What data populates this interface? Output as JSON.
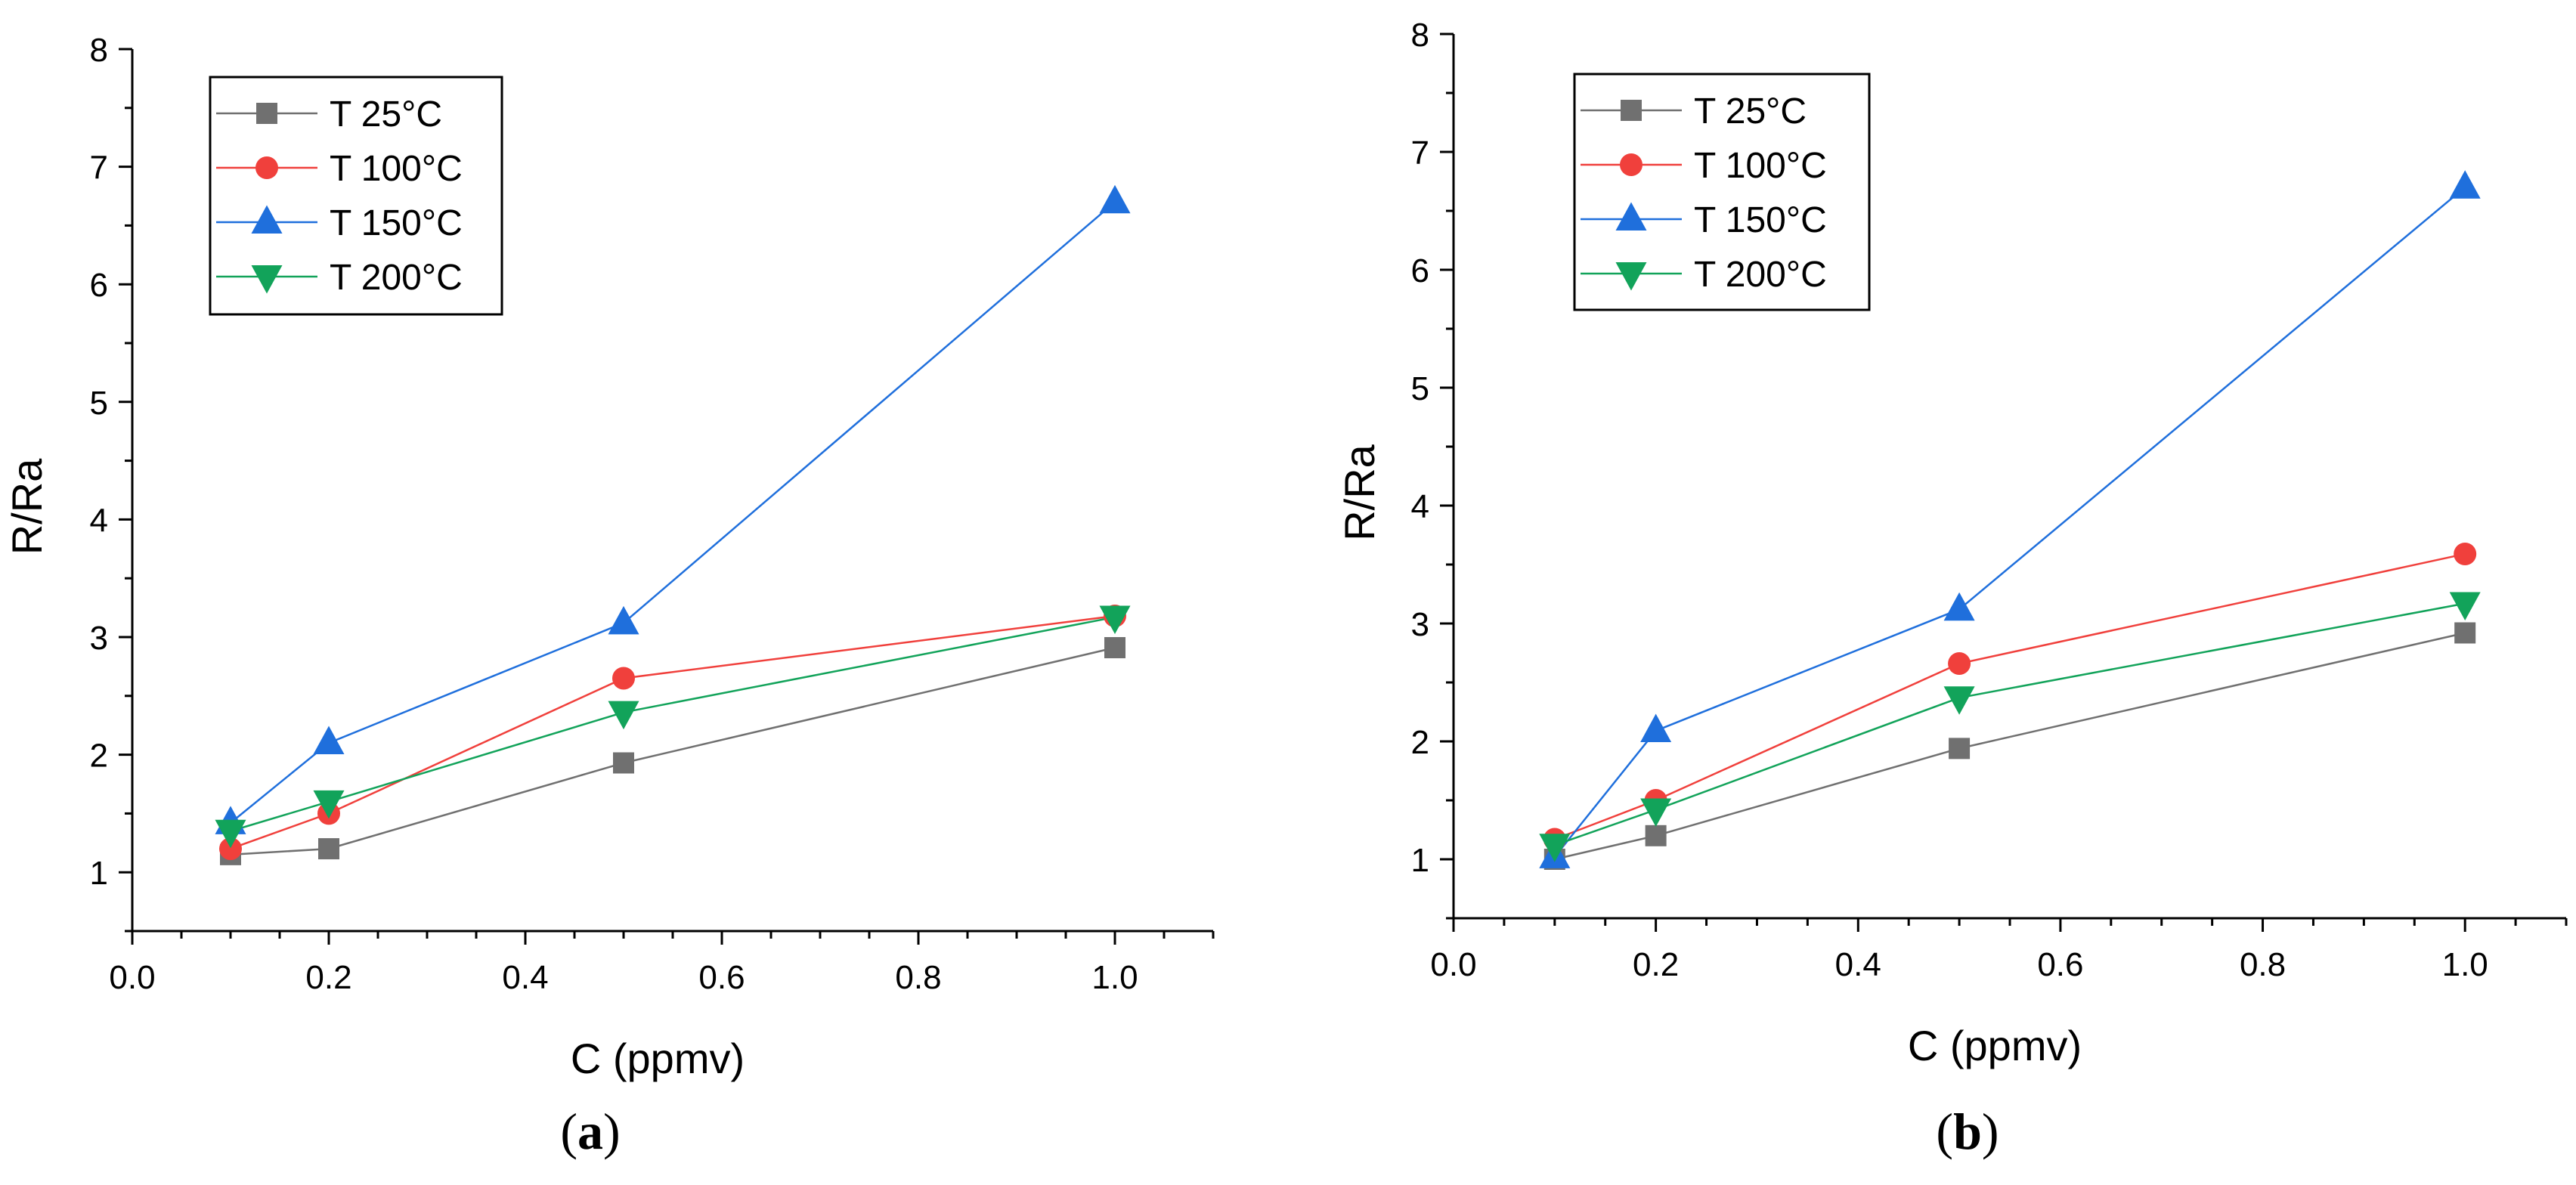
{
  "chart_data": [
    {
      "type": "line",
      "panel_label": "a",
      "xlabel": "C (ppmv)",
      "ylabel": "R/Ra",
      "xlim": [
        0.0,
        1.1
      ],
      "ylim": [
        0.5,
        8
      ],
      "x_ticks": [
        "0.0",
        "0.2",
        "0.4",
        "0.6",
        "0.8",
        "1.0"
      ],
      "y_ticks": [
        "1",
        "2",
        "3",
        "4",
        "5",
        "6",
        "7",
        "8"
      ],
      "legend_position": "top-left",
      "x": [
        0.1,
        0.2,
        0.5,
        1.0
      ],
      "series": [
        {
          "name": "T 25°C",
          "color": "#707070",
          "marker": "square",
          "values": [
            1.15,
            1.2,
            1.93,
            2.91
          ]
        },
        {
          "name": "T 100°C",
          "color": "#f0403c",
          "marker": "circle",
          "values": [
            1.2,
            1.5,
            2.65,
            3.18
          ]
        },
        {
          "name": "T 150°C",
          "color": "#1f6fdc",
          "marker": "triangle-up",
          "values": [
            1.42,
            2.1,
            3.12,
            6.7
          ]
        },
        {
          "name": "T 200°C",
          "color": "#12a35a",
          "marker": "triangle-down",
          "values": [
            1.35,
            1.6,
            2.36,
            3.17
          ]
        }
      ]
    },
    {
      "type": "line",
      "panel_label": "b",
      "xlabel": "C (ppmv)",
      "ylabel": "R/Ra",
      "xlim": [
        0.0,
        1.1
      ],
      "ylim": [
        0.5,
        8
      ],
      "x_ticks": [
        "0.0",
        "0.2",
        "0.4",
        "0.6",
        "0.8",
        "1.0"
      ],
      "y_ticks": [
        "1",
        "2",
        "3",
        "4",
        "5",
        "6",
        "7",
        "8"
      ],
      "legend_position": "top-left",
      "x": [
        0.1,
        0.2,
        0.5,
        1.0
      ],
      "series": [
        {
          "name": "T 25°C",
          "color": "#707070",
          "marker": "square",
          "values": [
            1.0,
            1.2,
            1.94,
            2.92
          ]
        },
        {
          "name": "T 100°C",
          "color": "#f0403c",
          "marker": "circle",
          "values": [
            1.17,
            1.5,
            2.66,
            3.59
          ]
        },
        {
          "name": "T 150°C",
          "color": "#1f6fdc",
          "marker": "triangle-up",
          "values": [
            1.02,
            2.09,
            3.12,
            6.7
          ]
        },
        {
          "name": "T 200°C",
          "color": "#12a35a",
          "marker": "triangle-down",
          "values": [
            1.12,
            1.42,
            2.37,
            3.17
          ]
        }
      ]
    }
  ],
  "captions": {
    "a": "a",
    "b": "b"
  }
}
